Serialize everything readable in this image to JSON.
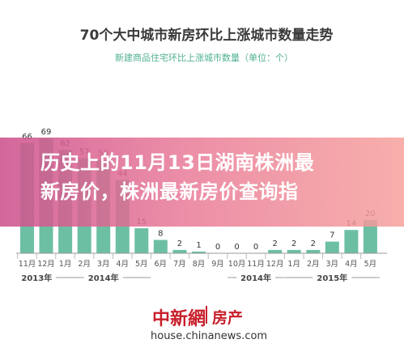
{
  "chart_data": {
    "type": "bar",
    "title": "70个大中城市新房环比上涨城市数量走势",
    "subtitle": "新建商品住宅环比上涨城市数量（单位：个）",
    "categories": [
      "11月",
      "12月",
      "1月",
      "2月",
      "3月",
      "4月",
      "5月",
      "6月",
      "7月",
      "8月",
      "9月",
      "10月",
      "11月",
      "12月",
      "1月",
      "2月",
      "3月",
      "4月",
      "5月"
    ],
    "values": [
      66,
      69,
      62,
      57,
      56,
      44,
      15,
      8,
      2,
      1,
      0,
      0,
      0,
      2,
      2,
      2,
      7,
      14,
      20
    ],
    "data_labels": [
      "66",
      "69",
      "62",
      "57",
      "56",
      "44",
      "15",
      "8",
      "2",
      "1",
      "0",
      "0",
      "0",
      "2",
      "2",
      "2",
      "7",
      "14",
      "20"
    ],
    "year_labels": [
      {
        "label": "2013年",
        "start": 0,
        "end": 1
      },
      {
        "label": "2014年",
        "start": 2,
        "end": 6
      },
      {
        "label": "2014年",
        "start": 11,
        "end": 13
      },
      {
        "label": "2015年",
        "start": 14,
        "end": 18
      }
    ],
    "ylim": [
      0,
      75
    ],
    "bar_color": "#6cbfa3",
    "label_color": "#555555",
    "title_color": "#3a3a3a",
    "subtitle_color": "#4faf93"
  },
  "overlay": {
    "line1": "历史上的11月13日湖南株洲最",
    "line2": "新房价，株洲最新房价查询指"
  },
  "watermark": {
    "logo": "中新網",
    "tag": "房产",
    "url": "house.chinanews.com"
  }
}
